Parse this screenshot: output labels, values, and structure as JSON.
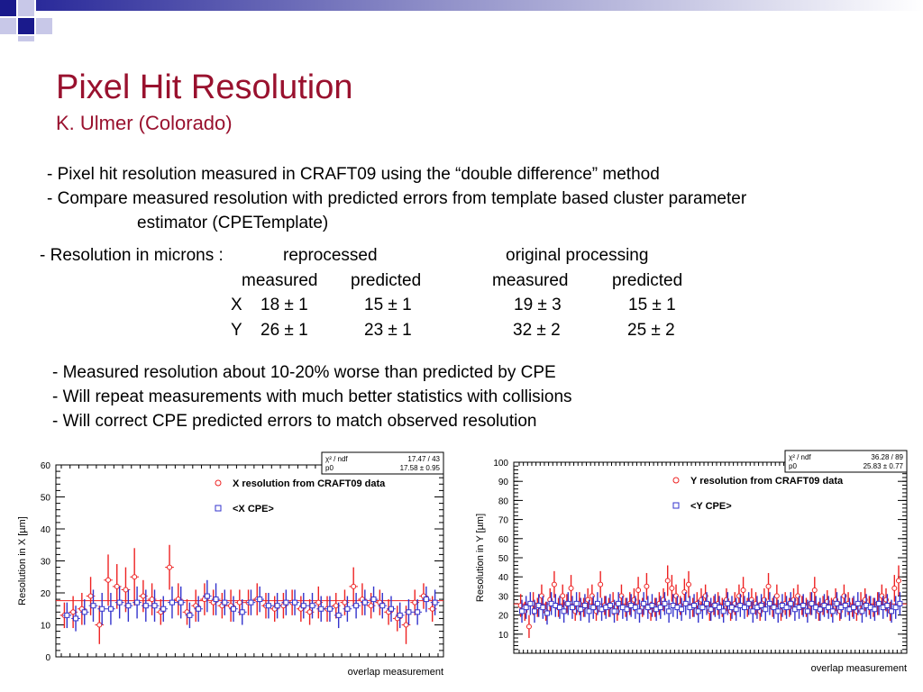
{
  "slide": {
    "title": "Pixel Hit Resolution",
    "subtitle": "K. Ulmer (Colorado)",
    "bullets": [
      "- Pixel hit resolution measured in CRAFT09 using the “double difference” method",
      "- Compare measured resolution with predicted errors from template based cluster parameter",
      "estimator (CPETemplate)"
    ],
    "resolution_table": {
      "label": "- Resolution in microns :",
      "group_reprocessed": "reprocessed",
      "group_original": "original processing",
      "col_measured": "measured",
      "col_predicted": "predicted",
      "rows": [
        {
          "axis": "X",
          "reproc_measured": "18 ± 1",
          "reproc_predicted": "15 ± 1",
          "orig_measured": "19 ± 3",
          "orig_predicted": "15 ± 1"
        },
        {
          "axis": "Y",
          "reproc_measured": "26 ± 1",
          "reproc_predicted": "23 ± 1",
          "orig_measured": "32 ± 2",
          "orig_predicted": "25 ± 2"
        }
      ]
    },
    "notes": [
      "- Measured resolution about 10-20% worse than predicted by CPE",
      "- Will repeat measurements with much better statistics with collisions",
      "- Will correct CPE predicted errors to match observed resolution"
    ]
  },
  "colors": {
    "title": "#99112e",
    "measured_series": "#ee2222",
    "cpe_series": "#3333cc",
    "deco_dark": "#1a1a8c",
    "deco_light": "#b8b8e0"
  },
  "chart_data": [
    {
      "type": "scatter",
      "title": "",
      "xlabel": "overlap measurement",
      "ylabel": "Resolution in X [µm]",
      "ylim": [
        0,
        60
      ],
      "yticks": [
        0,
        10,
        20,
        30,
        40,
        50,
        60
      ],
      "grid": false,
      "legend_position": "top-center",
      "stats_box": [
        {
          "label": "χ² / ndf",
          "value": "17.47 / 43"
        },
        {
          "label": "p0",
          "value": "17.58 ± 0.95"
        }
      ],
      "fit_line": 17.58,
      "series": [
        {
          "name": "X resolution from CRAFT09 data",
          "marker": "circle",
          "values": [
            13,
            14,
            15,
            19,
            10,
            24,
            22,
            21,
            25,
            19,
            18,
            14,
            28,
            18,
            14,
            16,
            18,
            17,
            16,
            16,
            17,
            17,
            18,
            16,
            15,
            16,
            17,
            15,
            14,
            17,
            15,
            16,
            17,
            22,
            18,
            16,
            17,
            14,
            12,
            10,
            17,
            19,
            15
          ],
          "errors": [
            4,
            5,
            5,
            6,
            6,
            8,
            7,
            7,
            9,
            5,
            5,
            4,
            7,
            5,
            4,
            5,
            5,
            4,
            4,
            5,
            4,
            4,
            5,
            4,
            4,
            4,
            4,
            4,
            4,
            5,
            4,
            4,
            4,
            6,
            5,
            4,
            4,
            4,
            4,
            6,
            4,
            4,
            4
          ]
        },
        {
          "name": "<X CPE>",
          "marker": "square",
          "values": [
            13,
            12,
            14,
            16,
            15,
            15,
            17,
            16,
            17,
            16,
            16,
            15,
            17,
            17,
            13,
            15,
            19,
            18,
            17,
            15,
            14,
            17,
            18,
            16,
            16,
            17,
            17,
            16,
            16,
            15,
            15,
            13,
            15,
            16,
            17,
            18,
            16,
            15,
            13,
            14,
            14,
            18,
            17
          ],
          "errors": [
            4,
            4,
            4,
            5,
            5,
            5,
            5,
            5,
            5,
            5,
            5,
            4,
            5,
            5,
            4,
            4,
            5,
            5,
            4,
            4,
            4,
            4,
            4,
            4,
            4,
            4,
            4,
            4,
            4,
            4,
            4,
            4,
            4,
            4,
            4,
            4,
            4,
            4,
            4,
            4,
            4,
            4,
            4
          ]
        }
      ]
    },
    {
      "type": "scatter",
      "title": "",
      "xlabel": "overlap measurement",
      "ylabel": "Resolution in Y [µm]",
      "ylim": [
        0,
        100
      ],
      "yticks": [
        10,
        20,
        30,
        40,
        50,
        60,
        70,
        80,
        90,
        100
      ],
      "grid": false,
      "legend_position": "top-center",
      "stats_box": [
        {
          "label": "χ² / ndf",
          "value": "36.28 / 89"
        },
        {
          "label": "p0",
          "value": "25.83 ± 0.77"
        }
      ],
      "fit_line": 25.83,
      "series": [
        {
          "name": "Y resolution from CRAFT09 data",
          "marker": "circle",
          "values": [
            25,
            22,
            14,
            26,
            24,
            30,
            22,
            28,
            36,
            24,
            30,
            26,
            34,
            22,
            26,
            24,
            28,
            30,
            22,
            36,
            25,
            24,
            26,
            22,
            30,
            24,
            26,
            28,
            33,
            24,
            35,
            22,
            24,
            26,
            28,
            38,
            34,
            30,
            25,
            32,
            36,
            24,
            26,
            28,
            30,
            22,
            25,
            26,
            24,
            28,
            22,
            26,
            30,
            33,
            24,
            28,
            26,
            22,
            28,
            35,
            24,
            30,
            22,
            26,
            24,
            28,
            30,
            25,
            24,
            26,
            33,
            22,
            25,
            27,
            24,
            28,
            22,
            30,
            26,
            24,
            22,
            26,
            28,
            25,
            24,
            26,
            30,
            28,
            22,
            34,
            38
          ],
          "errors": [
            6,
            5,
            6,
            6,
            5,
            6,
            5,
            6,
            7,
            5,
            6,
            5,
            7,
            5,
            6,
            5,
            6,
            6,
            5,
            7,
            5,
            5,
            6,
            5,
            6,
            5,
            6,
            6,
            7,
            5,
            7,
            5,
            5,
            6,
            6,
            8,
            7,
            6,
            5,
            7,
            7,
            5,
            6,
            6,
            6,
            5,
            5,
            6,
            5,
            6,
            5,
            6,
            6,
            7,
            5,
            6,
            6,
            5,
            6,
            7,
            5,
            6,
            5,
            6,
            5,
            6,
            6,
            5,
            5,
            6,
            7,
            5,
            5,
            6,
            5,
            6,
            5,
            6,
            6,
            5,
            5,
            6,
            6,
            5,
            5,
            6,
            6,
            6,
            5,
            7,
            8
          ]
        },
        {
          "name": "<Y CPE>",
          "marker": "square",
          "values": [
            22,
            24,
            26,
            22,
            25,
            24,
            21,
            26,
            25,
            24,
            22,
            26,
            24,
            26,
            23,
            25,
            22,
            24,
            26,
            23,
            24,
            25,
            22,
            26,
            24,
            23,
            25,
            24,
            22,
            26,
            24,
            25,
            23,
            24,
            26,
            22,
            25,
            24,
            23,
            26,
            24,
            25,
            22,
            24,
            26,
            23,
            25,
            24,
            22,
            26,
            24,
            23,
            25,
            24,
            26,
            22,
            24,
            25,
            23,
            26,
            24,
            22,
            25,
            24,
            26,
            23,
            24,
            25,
            22,
            26,
            24,
            23,
            25,
            24,
            22,
            26,
            24,
            25,
            23,
            24,
            26,
            22,
            25,
            24,
            23,
            26,
            24,
            25,
            22,
            24,
            26
          ],
          "errors": [
            6,
            6,
            6,
            6,
            6,
            6,
            6,
            6,
            6,
            6,
            6,
            6,
            6,
            6,
            6,
            6,
            6,
            6,
            6,
            6,
            6,
            6,
            6,
            6,
            6,
            6,
            6,
            6,
            6,
            6,
            6,
            6,
            6,
            6,
            6,
            6,
            6,
            6,
            6,
            6,
            6,
            6,
            6,
            6,
            6,
            6,
            6,
            6,
            6,
            6,
            6,
            6,
            6,
            6,
            6,
            6,
            6,
            6,
            6,
            6,
            6,
            6,
            6,
            6,
            6,
            6,
            6,
            6,
            6,
            6,
            6,
            6,
            6,
            6,
            6,
            6,
            6,
            6,
            6,
            6,
            6,
            6,
            6,
            6,
            6,
            6,
            6,
            6,
            6,
            6,
            6
          ]
        }
      ]
    }
  ]
}
